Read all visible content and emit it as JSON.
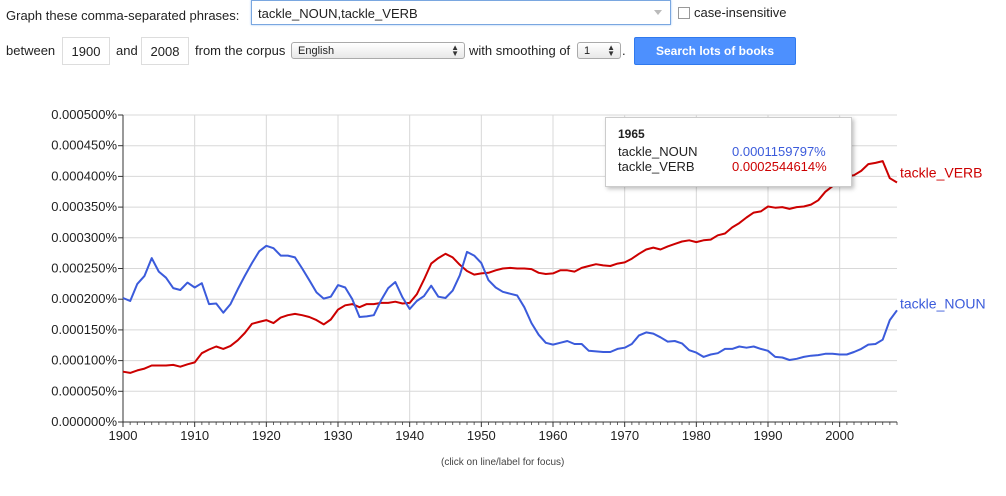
{
  "form": {
    "graph_label": "Graph these comma-separated phrases:",
    "phrases_value": "tackle_NOUN,tackle_VERB",
    "case_insensitive_label": "case-insensitive",
    "between_label": "between",
    "start_year": "1900",
    "and_label": "and",
    "end_year": "2008",
    "corpus_label": "from the corpus",
    "corpus_value": "English",
    "smoothing_label": "with smoothing of",
    "smoothing_value": "1",
    "period": ".",
    "search_button": "Search lots of books"
  },
  "tooltip": {
    "year": "1965",
    "rows": [
      {
        "name": "tackle_NOUN",
        "value": "0.0001159797%",
        "color": "#3b5bdb"
      },
      {
        "name": "tackle_VERB",
        "value": "0.0002544614%",
        "color": "#cc0000"
      }
    ]
  },
  "footer_note": "(click on line/label for focus)",
  "chart_data": {
    "type": "line",
    "x_range": [
      1900,
      2008
    ],
    "ylim": [
      0,
      0.0005
    ],
    "y_ticks": [
      "0.000000%",
      "0.000050%",
      "0.000100%",
      "0.000150%",
      "0.000200%",
      "0.000250%",
      "0.000300%",
      "0.000350%",
      "0.000400%",
      "0.000450%",
      "0.000500%"
    ],
    "x_ticks": [
      "1900",
      "1910",
      "1920",
      "1930",
      "1940",
      "1950",
      "1960",
      "1970",
      "1980",
      "1990",
      "2000"
    ],
    "grid": true,
    "series": [
      {
        "name": "tackle_VERB",
        "color": "#cc0000",
        "x": [
          1900,
          1901,
          1902,
          1903,
          1904,
          1905,
          1906,
          1907,
          1908,
          1909,
          1910,
          1911,
          1912,
          1913,
          1914,
          1915,
          1916,
          1917,
          1918,
          1919,
          1920,
          1921,
          1922,
          1923,
          1924,
          1925,
          1926,
          1927,
          1928,
          1929,
          1930,
          1931,
          1932,
          1933,
          1934,
          1935,
          1936,
          1937,
          1938,
          1939,
          1940,
          1941,
          1942,
          1943,
          1944,
          1945,
          1946,
          1947,
          1948,
          1949,
          1950,
          1951,
          1952,
          1953,
          1954,
          1955,
          1956,
          1957,
          1958,
          1959,
          1960,
          1961,
          1962,
          1963,
          1964,
          1965,
          1966,
          1967,
          1968,
          1969,
          1970,
          1971,
          1972,
          1973,
          1974,
          1975,
          1976,
          1977,
          1978,
          1979,
          1980,
          1981,
          1982,
          1983,
          1984,
          1985,
          1986,
          1987,
          1988,
          1989,
          1990,
          1991,
          1992,
          1993,
          1994,
          1995,
          1996,
          1997,
          1998,
          1999,
          2000,
          2001,
          2002,
          2003,
          2004,
          2005,
          2006,
          2007,
          2008
        ],
        "values": [
          8.2e-05,
          8e-05,
          8.4e-05,
          8.7e-05,
          9.2e-05,
          9.2e-05,
          9.2e-05,
          9.3e-05,
          9e-05,
          9.4e-05,
          9.7e-05,
          0.000112,
          0.000118,
          0.000123,
          0.000119,
          0.000124,
          0.000133,
          0.000145,
          0.00016,
          0.000163,
          0.000166,
          0.000161,
          0.00017,
          0.000174,
          0.000176,
          0.000174,
          0.000171,
          0.000166,
          0.000159,
          0.000167,
          0.000183,
          0.00019,
          0.000192,
          0.000187,
          0.000192,
          0.000192,
          0.000194,
          0.000194,
          0.000196,
          0.000193,
          0.000194,
          0.000208,
          0.000232,
          0.000258,
          0.000267,
          0.000274,
          0.000268,
          0.000256,
          0.000246,
          0.00024,
          0.000242,
          0.000243,
          0.000247,
          0.00025,
          0.000251,
          0.00025,
          0.00025,
          0.000249,
          0.000243,
          0.000241,
          0.000242,
          0.000247,
          0.000247,
          0.000245,
          0.000251,
          0.000254,
          0.000257,
          0.000255,
          0.000254,
          0.000258,
          0.00026,
          0.000266,
          0.000274,
          0.000281,
          0.000284,
          0.000281,
          0.000286,
          0.00029,
          0.000294,
          0.000296,
          0.000293,
          0.000296,
          0.000297,
          0.000304,
          0.000307,
          0.000317,
          0.000324,
          0.000333,
          0.000341,
          0.000343,
          0.000351,
          0.000349,
          0.00035,
          0.000347,
          0.00035,
          0.000351,
          0.000354,
          0.000361,
          0.000375,
          0.000384,
          0.000392,
          0.0004,
          0.000402,
          0.000409,
          0.00042,
          0.000422,
          0.000425,
          0.000397,
          0.00039
        ]
      },
      {
        "name": "tackle_NOUN",
        "color": "#3b5bdb",
        "x": [
          1900,
          1901,
          1902,
          1903,
          1904,
          1905,
          1906,
          1907,
          1908,
          1909,
          1910,
          1911,
          1912,
          1913,
          1914,
          1915,
          1916,
          1917,
          1918,
          1919,
          1920,
          1921,
          1922,
          1923,
          1924,
          1925,
          1926,
          1927,
          1928,
          1929,
          1930,
          1931,
          1932,
          1933,
          1934,
          1935,
          1936,
          1937,
          1938,
          1939,
          1940,
          1941,
          1942,
          1943,
          1944,
          1945,
          1946,
          1947,
          1948,
          1949,
          1950,
          1951,
          1952,
          1953,
          1954,
          1955,
          1956,
          1957,
          1958,
          1959,
          1960,
          1961,
          1962,
          1963,
          1964,
          1965,
          1966,
          1967,
          1968,
          1969,
          1970,
          1971,
          1972,
          1973,
          1974,
          1975,
          1976,
          1977,
          1978,
          1979,
          1980,
          1981,
          1982,
          1983,
          1984,
          1985,
          1986,
          1987,
          1988,
          1989,
          1990,
          1991,
          1992,
          1993,
          1994,
          1995,
          1996,
          1997,
          1998,
          1999,
          2000,
          2001,
          2002,
          2003,
          2004,
          2005,
          2006,
          2007,
          2008
        ],
        "values": [
          0.000202,
          0.000197,
          0.000225,
          0.000238,
          0.000267,
          0.000245,
          0.000235,
          0.000218,
          0.000215,
          0.000227,
          0.000219,
          0.000226,
          0.000192,
          0.000193,
          0.000178,
          0.000192,
          0.000216,
          0.000238,
          0.000259,
          0.000278,
          0.000287,
          0.000283,
          0.000271,
          0.000271,
          0.000268,
          0.00025,
          0.000231,
          0.000211,
          0.000201,
          0.000204,
          0.000223,
          0.000219,
          0.0002,
          0.000171,
          0.000172,
          0.000174,
          0.000198,
          0.000218,
          0.000228,
          0.000203,
          0.000184,
          0.000197,
          0.000205,
          0.000222,
          0.000204,
          0.000202,
          0.000214,
          0.000239,
          0.000277,
          0.000271,
          0.000259,
          0.000231,
          0.000219,
          0.000212,
          0.000209,
          0.000206,
          0.000187,
          0.000161,
          0.000142,
          0.000129,
          0.000126,
          0.000129,
          0.000132,
          0.000127,
          0.000127,
          0.000116,
          0.000115,
          0.000114,
          0.000114,
          0.000119,
          0.000121,
          0.000127,
          0.000141,
          0.000146,
          0.000144,
          0.000138,
          0.000131,
          0.000132,
          0.000128,
          0.000117,
          0.000113,
          0.000106,
          0.00011,
          0.000112,
          0.000119,
          0.000119,
          0.000123,
          0.000121,
          0.000123,
          0.000119,
          0.000116,
          0.000106,
          0.000105,
          0.000101,
          0.000103,
          0.000106,
          0.000108,
          0.000109,
          0.000111,
          0.000111,
          0.00011,
          0.00011,
          0.000114,
          0.000119,
          0.000126,
          0.000127,
          0.000134,
          0.000166,
          0.000182
        ]
      }
    ]
  }
}
